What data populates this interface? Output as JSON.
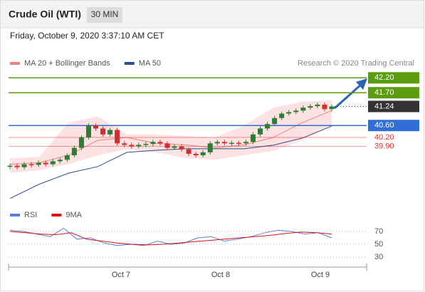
{
  "header": {
    "title": "Crude Oil (WTI)",
    "interval": "30 MIN",
    "timestamp": "Friday, October 9, 2020 3:37:10 AM CET"
  },
  "chart_data": {
    "type": "candlestick",
    "legend": [
      {
        "name": "MA 20 + Bollinger Bands",
        "color": "#f08080"
      },
      {
        "name": "MA 50",
        "color": "#2c4f8f"
      }
    ],
    "credit": "Research © 2020 Trading Central",
    "ylim": [
      38.0,
      42.9
    ],
    "close": [
      39.25,
      39.2,
      39.3,
      39.28,
      39.35,
      39.3,
      39.4,
      39.45,
      39.6,
      39.85,
      40.2,
      40.6,
      40.5,
      40.3,
      40.45,
      40.0,
      39.95,
      39.9,
      39.95,
      39.98,
      40.05,
      40.0,
      39.85,
      39.9,
      39.8,
      39.65,
      39.6,
      39.7,
      40.0,
      40.05,
      40.0,
      40.02,
      40.0,
      40.05,
      40.3,
      40.5,
      40.65,
      40.85,
      41.0,
      41.05,
      41.1,
      41.2,
      41.25,
      41.3,
      41.15,
      41.24
    ],
    "ma20": [
      39.3,
      39.35,
      39.6,
      40.1,
      40.2,
      40.0,
      39.95,
      39.85,
      39.95,
      40.2,
      40.7,
      41.1
    ],
    "bb_upper": [
      39.5,
      39.55,
      40.7,
      40.9,
      40.3,
      40.3,
      40.25,
      40.2,
      40.6,
      41.2,
      41.4,
      41.45
    ],
    "bb_lower": [
      39.0,
      39.1,
      39.3,
      39.6,
      39.8,
      39.7,
      39.5,
      39.45,
      39.6,
      39.75,
      40.1,
      40.6
    ],
    "ma50": [
      38.15,
      38.63,
      39.0,
      39.22,
      39.7,
      39.77,
      39.82,
      39.82,
      39.82,
      39.94,
      40.18,
      40.58
    ],
    "levels": [
      {
        "value": 42.2,
        "label": "42.20",
        "color": "#5a9e0f",
        "kind": "box"
      },
      {
        "value": 41.7,
        "label": "41.70",
        "color": "#5a9e0f",
        "kind": "box"
      },
      {
        "value": 41.24,
        "label": "41.24",
        "color": "#333333",
        "kind": "current"
      },
      {
        "value": 40.6,
        "label": "40.60",
        "color": "#2f6fd6",
        "kind": "box"
      },
      {
        "value": 40.2,
        "label": "40.20",
        "color": "#e03030",
        "kind": "text"
      },
      {
        "value": 39.9,
        "label": "39.90",
        "color": "#e03030",
        "kind": "text"
      }
    ],
    "xticks": [
      "Oct 7",
      "Oct 8",
      "Oct 9"
    ]
  },
  "rsi_data": {
    "type": "line",
    "legend": [
      {
        "name": "RSI",
        "color": "#5b7fdc"
      },
      {
        "name": "9MA",
        "color": "#dd1111"
      }
    ],
    "ylim": [
      20,
      90
    ],
    "yticks": [
      30,
      50,
      70
    ],
    "rsi": [
      72,
      70,
      66,
      62,
      75,
      58,
      60,
      52,
      48,
      50,
      48,
      55,
      50,
      52,
      60,
      62,
      55,
      58,
      62,
      68,
      72,
      70,
      66,
      68,
      60
    ],
    "ma9": [
      70,
      68,
      66,
      65,
      68,
      58,
      55,
      52,
      50,
      49,
      50,
      52,
      54,
      56,
      58,
      60,
      62,
      64,
      67,
      69,
      68,
      66
    ]
  }
}
